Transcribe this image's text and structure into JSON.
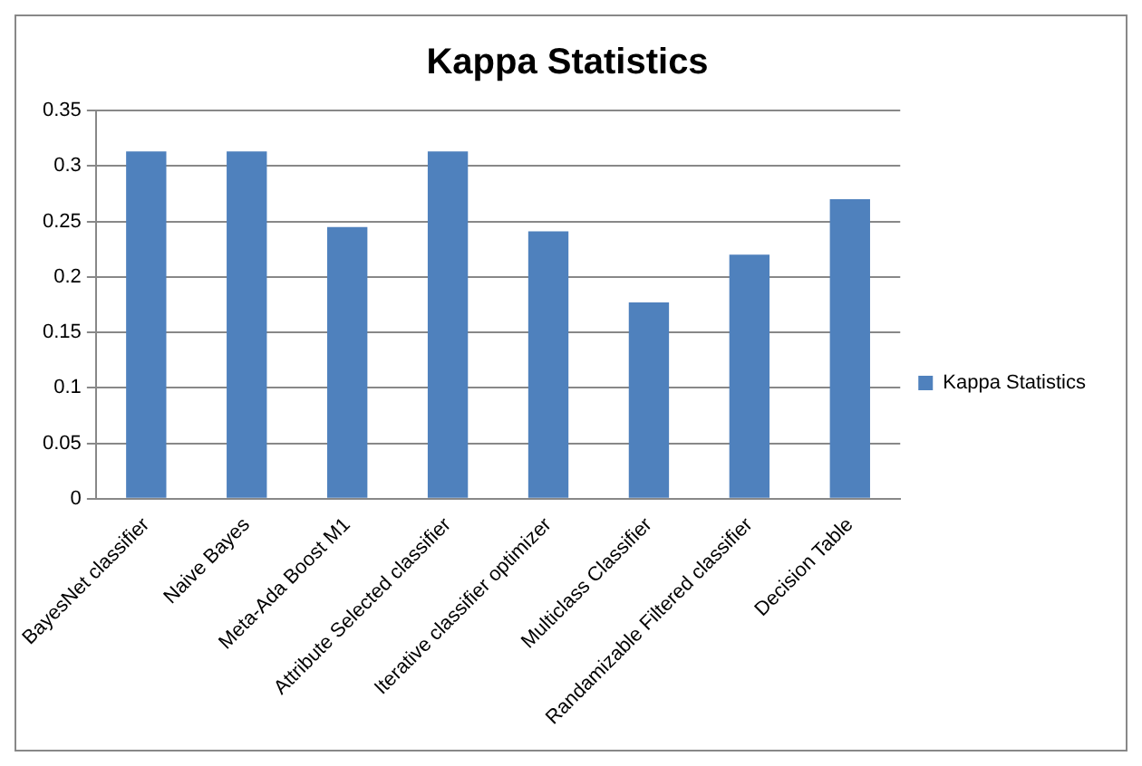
{
  "chart_data": {
    "type": "bar",
    "title": "Kappa Statistics",
    "categories": [
      "BayesNet classifier",
      "Naive Bayes",
      "Meta-Ada Boost M1",
      "Attribute Selected classifier",
      "Iterative classifier optimizer",
      "Multiclass Classifier",
      "Randamizable Filtered classifier",
      "Decision Table"
    ],
    "series": [
      {
        "name": "Kappa Statistics",
        "color": "#4f81bd",
        "values": [
          0.313,
          0.313,
          0.245,
          0.313,
          0.241,
          0.177,
          0.22,
          0.27
        ]
      }
    ],
    "ylim": [
      0,
      0.35
    ],
    "yticks": [
      0,
      0.05,
      0.1,
      0.15,
      0.2,
      0.25,
      0.3,
      0.35
    ],
    "grid": "y",
    "legend": "right"
  }
}
